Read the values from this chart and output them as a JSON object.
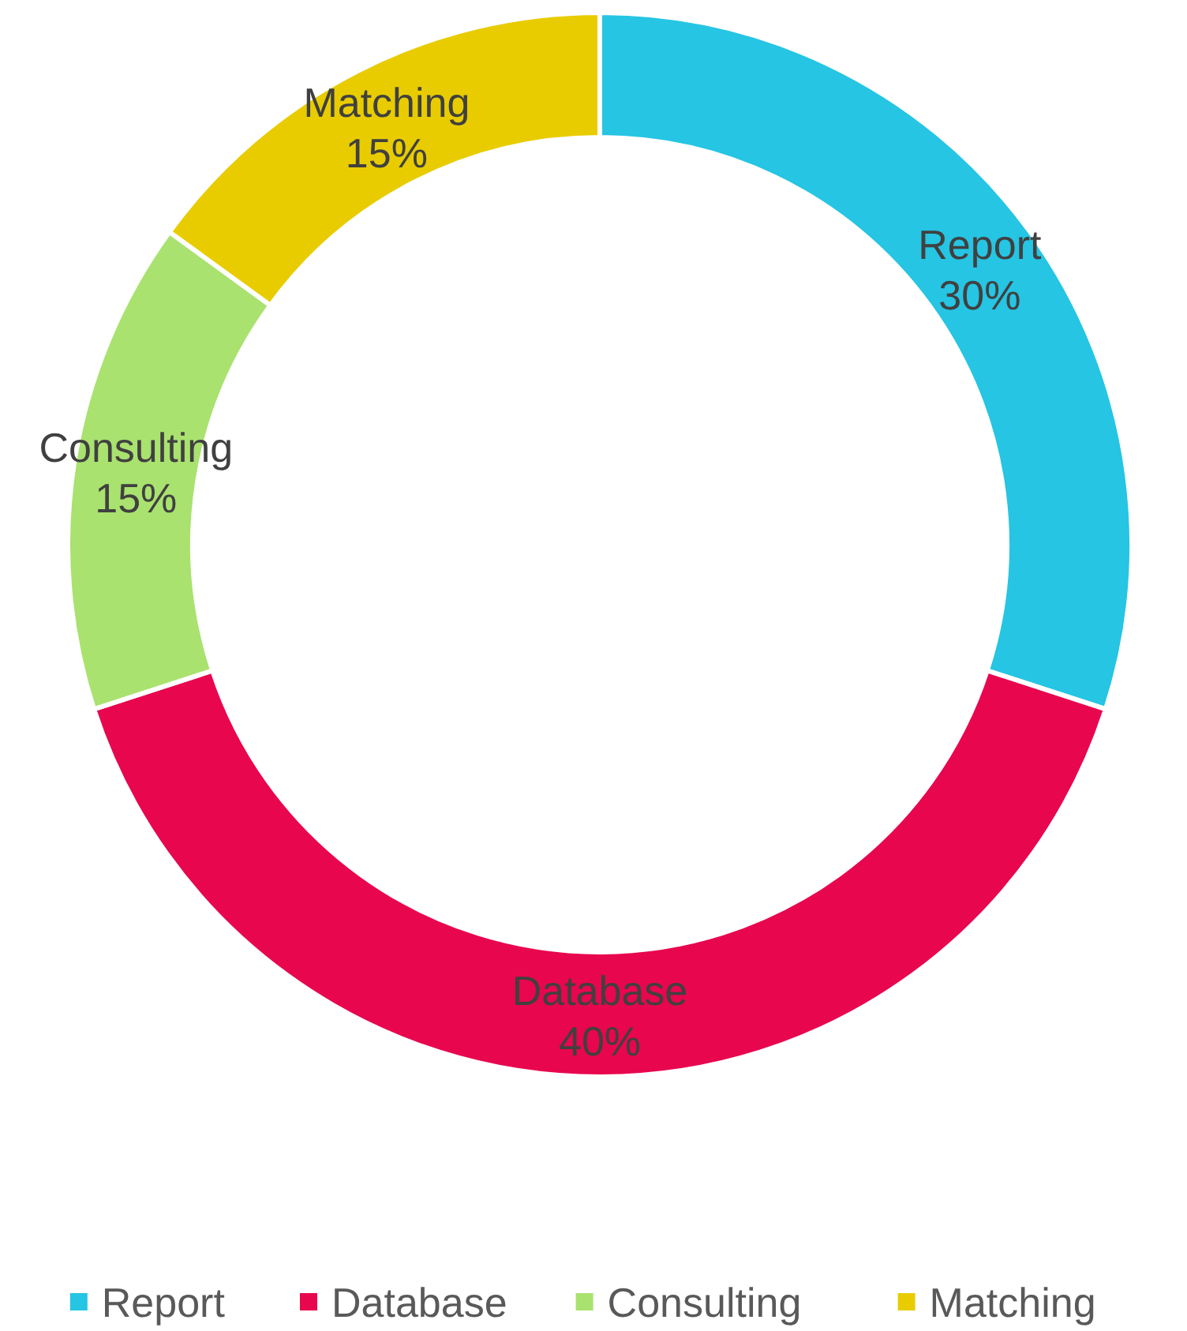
{
  "chart_data": {
    "type": "donut",
    "categories": [
      "Report",
      "Database",
      "Consulting",
      "Matching"
    ],
    "values": [
      30,
      40,
      15,
      15
    ],
    "colors": [
      "#25c5e3",
      "#e8064f",
      "#a9e26f",
      "#e8cc00"
    ],
    "value_labels": [
      "30%",
      "40%",
      "15%",
      "15%"
    ],
    "legend": "bottom"
  }
}
